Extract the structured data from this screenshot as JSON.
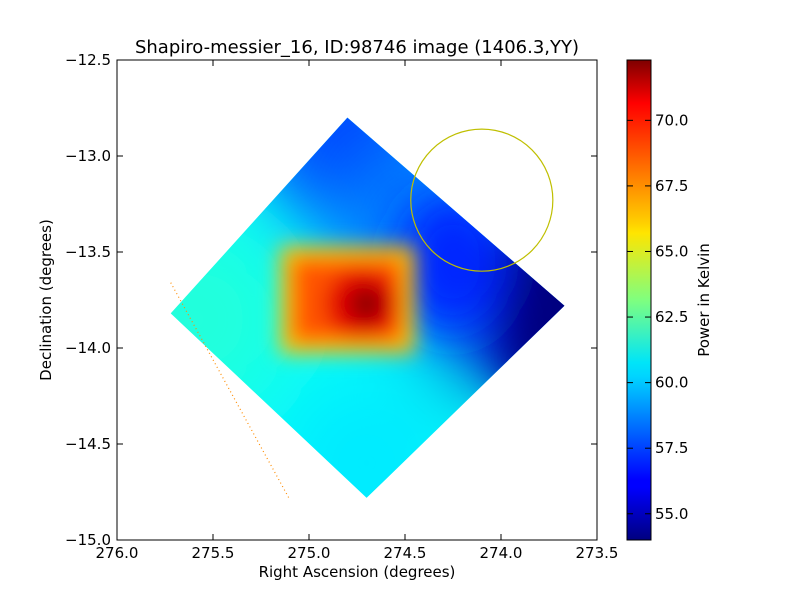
{
  "chart_data": {
    "type": "heatmap",
    "title": "Shapiro-messier_16, ID:98746 image (1406.3,YY)",
    "xlabel": "Right Ascension (degrees)",
    "ylabel": "Declination (degrees)",
    "xlim": [
      276.0,
      273.5
    ],
    "ylim": [
      -15.0,
      -12.5
    ],
    "x_ticks": [
      276.0,
      275.5,
      275.0,
      274.5,
      274.0,
      273.5
    ],
    "x_tick_labels": [
      "276.0",
      "275.5",
      "275.0",
      "274.5",
      "274.0",
      "273.5"
    ],
    "y_ticks": [
      -12.5,
      -13.0,
      -13.5,
      -14.0,
      -14.5,
      -15.0
    ],
    "y_tick_labels": [
      "−12.5",
      "−13.0",
      "−13.5",
      "−14.0",
      "−14.5",
      "−15.0"
    ],
    "colorbar": {
      "label": "Power in Kelvin",
      "range": [
        54.0,
        72.3
      ],
      "ticks": [
        55.0,
        57.5,
        60.0,
        62.5,
        65.0,
        67.5,
        70.0
      ],
      "tick_labels": [
        "55.0",
        "57.5",
        "60.0",
        "62.5",
        "65.0",
        "67.5",
        "70.0"
      ],
      "colormap": "jet"
    },
    "map": {
      "footprint": {
        "north": [
          274.8,
          -12.8
        ],
        "east": [
          275.72,
          -13.82
        ],
        "south": [
          274.7,
          -14.78
        ],
        "west": [
          273.67,
          -13.78
        ]
      },
      "peak": {
        "ra": 274.7,
        "dec": -13.77,
        "value": 72.0
      },
      "hot_region": {
        "ra": [
          275.12,
          274.48
        ],
        "dec": [
          -13.5,
          -14.0
        ]
      },
      "cold_edge": {
        "ra": 273.7,
        "dec": -13.78,
        "value": 54.0
      },
      "sample_values": [
        {
          "ra": 274.8,
          "dec": -12.9,
          "value": 57.5
        },
        {
          "ra": 275.6,
          "dec": -13.85,
          "value": 61.5
        },
        {
          "ra": 274.7,
          "dec": -14.6,
          "value": 60.5
        },
        {
          "ra": 273.9,
          "dec": -13.8,
          "value": 55.5
        },
        {
          "ra": 274.4,
          "dec": -13.4,
          "value": 58.5
        }
      ]
    },
    "overlays": {
      "circle": {
        "ra": 274.1,
        "dec": -13.23,
        "radius_deg": 0.37,
        "color": "#bfbf00"
      },
      "dotted_line": {
        "from": [
          275.72,
          -13.66
        ],
        "to": [
          275.1,
          -14.79
        ],
        "color": "#ff8c00"
      }
    },
    "grid": false
  }
}
